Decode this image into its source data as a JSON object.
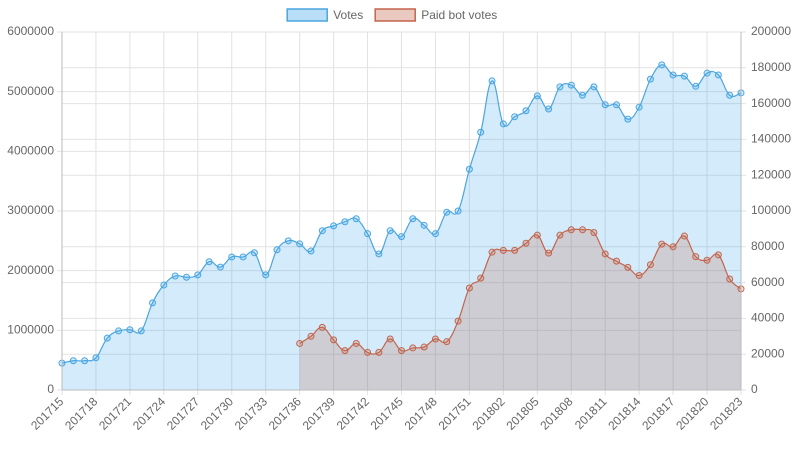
{
  "chart_data": {
    "type": "line",
    "categories": [
      "201715",
      null,
      null,
      "201718",
      null,
      null,
      "201721",
      null,
      null,
      "201724",
      null,
      null,
      "201727",
      null,
      null,
      "201730",
      null,
      null,
      "201733",
      null,
      null,
      "201736",
      null,
      null,
      "201739",
      null,
      null,
      "201742",
      null,
      null,
      "201745",
      null,
      null,
      "201748",
      null,
      null,
      "201751",
      null,
      null,
      "201802",
      null,
      null,
      "201805",
      null,
      null,
      "201808",
      null,
      null,
      "201811",
      null,
      null,
      "201814",
      null,
      null,
      "201817",
      null,
      null,
      "201820",
      null,
      null,
      "201823"
    ],
    "series": [
      {
        "name": "Votes",
        "color": "#4ba6df",
        "fill": "rgba(54,162,235,0.22)",
        "axis": "y",
        "values": [
          450000,
          490000,
          490000,
          540000,
          870000,
          990000,
          1010000,
          990000,
          1460000,
          1760000,
          1910000,
          1890000,
          1930000,
          2150000,
          2060000,
          2230000,
          2230000,
          2300000,
          1930000,
          2350000,
          2500000,
          2450000,
          2330000,
          2670000,
          2750000,
          2820000,
          2870000,
          2620000,
          2280000,
          2670000,
          2570000,
          2870000,
          2760000,
          2620000,
          2980000,
          3000000,
          3700000,
          4320000,
          5180000,
          4460000,
          4580000,
          4680000,
          4930000,
          4710000,
          5080000,
          5110000,
          4940000,
          5080000,
          4780000,
          4780000,
          4540000,
          4740000,
          5210000,
          5450000,
          5280000,
          5260000,
          5090000,
          5310000,
          5280000,
          4940000,
          4980000
        ]
      },
      {
        "name": "Paid bot votes",
        "color": "#c4654b",
        "fill": "rgba(196,101,75,0.22)",
        "axis": "y2",
        "values": [
          null,
          null,
          null,
          null,
          null,
          null,
          null,
          null,
          null,
          null,
          null,
          null,
          null,
          null,
          null,
          null,
          null,
          null,
          null,
          null,
          null,
          26000,
          30000,
          35000,
          28000,
          22000,
          26000,
          21000,
          21000,
          28500,
          22000,
          23500,
          24000,
          28500,
          27000,
          38500,
          57000,
          62500,
          77000,
          78000,
          78000,
          82000,
          86500,
          76500,
          86500,
          89500,
          89500,
          88000,
          76000,
          72000,
          68500,
          64000,
          70000,
          81500,
          80000,
          86000,
          74500,
          72500,
          75500,
          62000,
          56500
        ]
      }
    ],
    "ylim": [
      0,
      6000000
    ],
    "yticks": [
      0,
      1000000,
      2000000,
      3000000,
      4000000,
      5000000,
      6000000
    ],
    "y2lim": [
      0,
      200000
    ],
    "y2ticks": [
      0,
      20000,
      40000,
      60000,
      80000,
      100000,
      120000,
      140000,
      160000,
      180000,
      200000
    ],
    "grid": true,
    "legend": "top"
  }
}
